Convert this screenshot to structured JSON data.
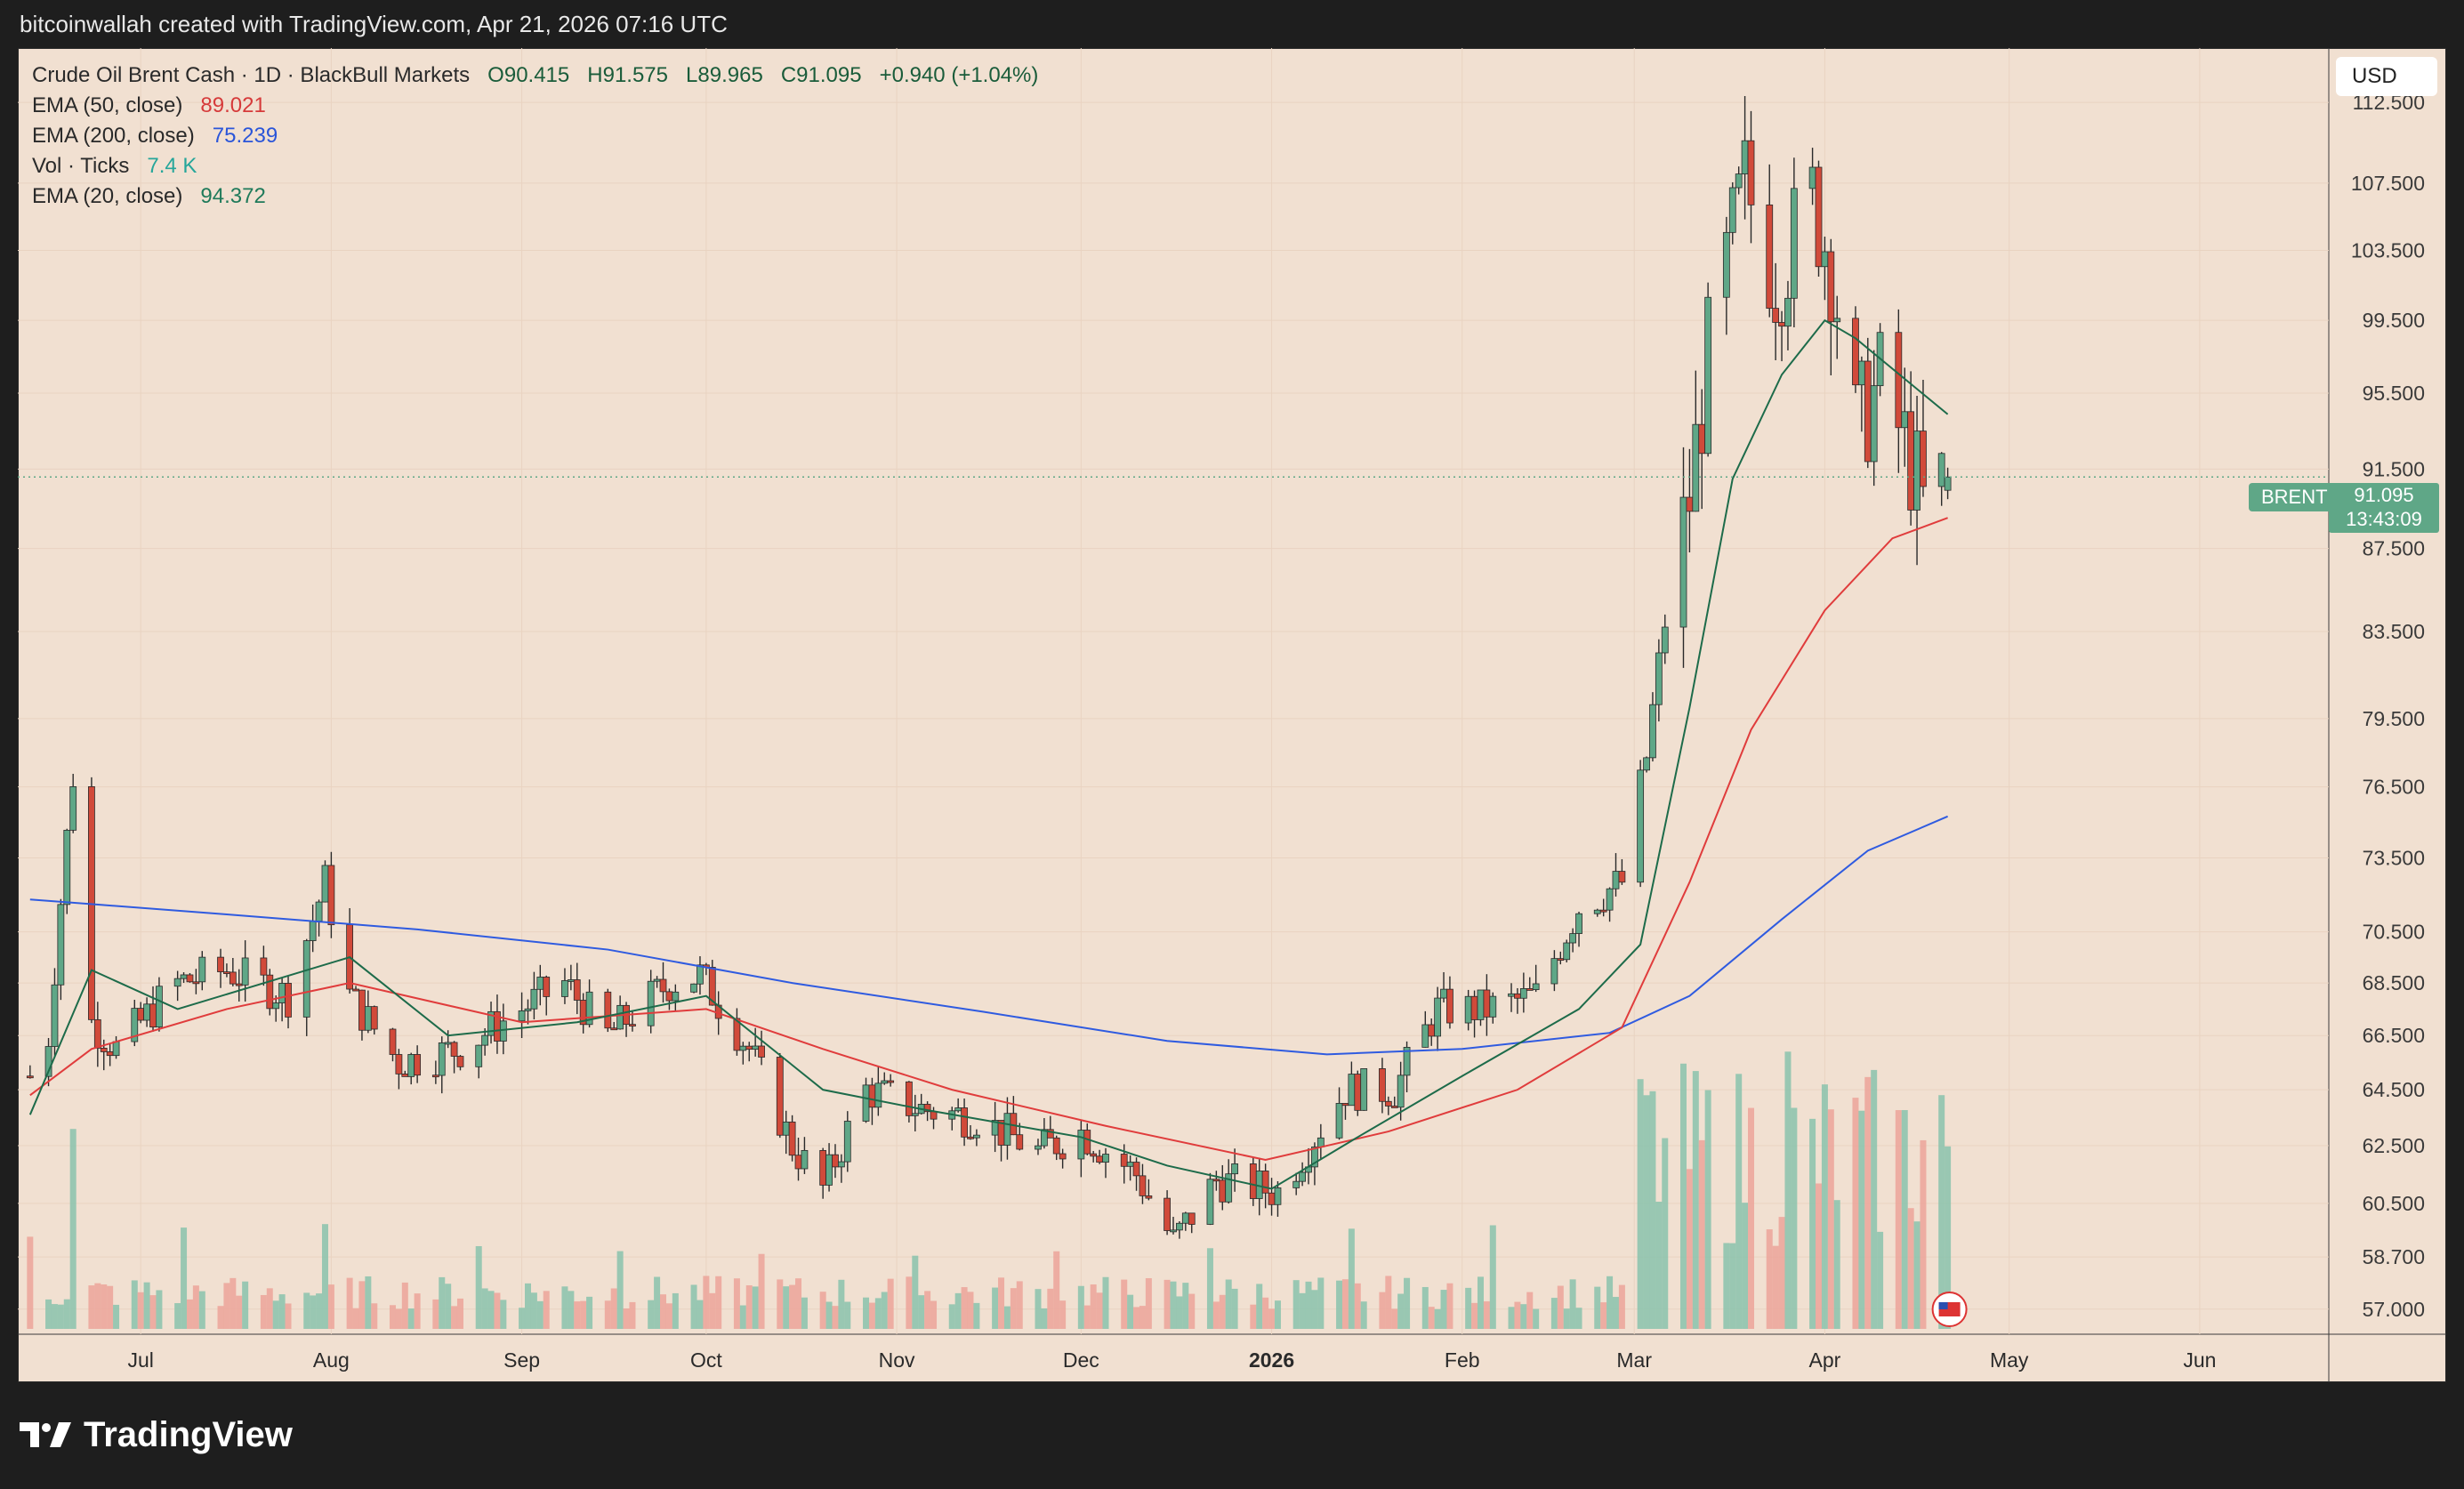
{
  "header": {
    "attribution": "bitcoinwallah created with TradingView.com, Apr 21, 2026 07:16 UTC"
  },
  "legend": {
    "symbol": "Crude Oil Brent Cash · 1D · BlackBull Markets",
    "open": "O90.415",
    "high": "H91.575",
    "low": "L89.965",
    "close": "C91.095",
    "change": "+0.940 (+1.04%)",
    "ema50_label": "EMA (50, close)",
    "ema50_value": "89.021",
    "ema200_label": "EMA (200, close)",
    "ema200_value": "75.239",
    "vol_label": "Vol · Ticks",
    "vol_value": "7.4 K",
    "ema20_label": "EMA (20, close)",
    "ema20_value": "94.372"
  },
  "currency_button": "USD",
  "price_tag": {
    "symbol": "BRENT",
    "price": "91.095",
    "countdown": "13:43:09"
  },
  "footer": {
    "brand": "TradingView"
  },
  "colors": {
    "up": "#5fa787",
    "down": "#d14a3a",
    "ema20": "#1d6b4a",
    "ema50": "#e03c3c",
    "ema200": "#2f5be0",
    "background": "#f1e0d1"
  },
  "chart_data": {
    "type": "candlestick",
    "title": "",
    "y_ticks": [
      "112.500",
      "107.500",
      "103.500",
      "99.500",
      "95.500",
      "91.500",
      "87.500",
      "83.500",
      "79.500",
      "76.500",
      "73.500",
      "70.500",
      "68.500",
      "66.500",
      "64.500",
      "62.500",
      "60.500",
      "58.700",
      "57.000"
    ],
    "x_ticks": [
      "Jul",
      "Aug",
      "Sep",
      "Oct",
      "Nov",
      "Dec",
      "2026",
      "Feb",
      "Mar",
      "Apr",
      "May",
      "Jun"
    ],
    "y_scale": "log",
    "ylim": [
      56.2,
      116.0
    ],
    "period": "1D",
    "last_price": 91.095,
    "price_path": [
      [
        "2025-06-13",
        65.0
      ],
      [
        "2025-06-16",
        66.5
      ],
      [
        "2025-06-20",
        77.0
      ],
      [
        "2025-06-23",
        67.0
      ],
      [
        "2025-06-27",
        66.0
      ],
      [
        "2025-07-07",
        68.5
      ],
      [
        "2025-07-15",
        69.0
      ],
      [
        "2025-07-25",
        68.0
      ],
      [
        "2025-07-31",
        72.5
      ],
      [
        "2025-08-04",
        68.0
      ],
      [
        "2025-08-12",
        65.5
      ],
      [
        "2025-08-22",
        66.0
      ],
      [
        "2025-09-01",
        67.5
      ],
      [
        "2025-09-08",
        68.5
      ],
      [
        "2025-09-15",
        66.5
      ],
      [
        "2025-09-25",
        68.5
      ],
      [
        "2025-09-30",
        68.8
      ],
      [
        "2025-10-08",
        66.0
      ],
      [
        "2025-10-15",
        62.5
      ],
      [
        "2025-10-20",
        61.0
      ],
      [
        "2025-10-27",
        64.5
      ],
      [
        "2025-11-05",
        63.8
      ],
      [
        "2025-11-14",
        63.5
      ],
      [
        "2025-11-24",
        62.3
      ],
      [
        "2025-12-01",
        63.0
      ],
      [
        "2025-12-10",
        61.5
      ],
      [
        "2025-12-16",
        59.2
      ],
      [
        "2025-12-23",
        61.3
      ],
      [
        "2026-01-02",
        60.9
      ],
      [
        "2026-01-07",
        62.5
      ],
      [
        "2026-01-13",
        64.5
      ],
      [
        "2026-01-21",
        64.5
      ],
      [
        "2026-01-28",
        67.5
      ],
      [
        "2026-02-05",
        67.5
      ],
      [
        "2026-02-13",
        68.0
      ],
      [
        "2026-02-20",
        71.5
      ],
      [
        "2026-02-27",
        72.5
      ],
      [
        "2026-03-03",
        77.8
      ],
      [
        "2026-03-06",
        84.0
      ],
      [
        "2026-03-10",
        90.0
      ],
      [
        "2026-03-13",
        97.5
      ],
      [
        "2026-03-19",
        107.5
      ],
      [
        "2026-03-24",
        102.0
      ],
      [
        "2026-03-30",
        106.5
      ],
      [
        "2026-04-02",
        103.0
      ],
      [
        "2026-04-06",
        93.5
      ],
      [
        "2026-04-10",
        96.0
      ],
      [
        "2026-04-15",
        92.0
      ],
      [
        "2026-04-17",
        89.5
      ],
      [
        "2026-04-21",
        91.095
      ]
    ],
    "ema20_path": [
      [
        "2025-06-13",
        63.6
      ],
      [
        "2025-06-23",
        69.0
      ],
      [
        "2025-07-07",
        67.5
      ],
      [
        "2025-08-04",
        69.5
      ],
      [
        "2025-08-20",
        66.5
      ],
      [
        "2025-09-10",
        67.0
      ],
      [
        "2025-10-01",
        68.0
      ],
      [
        "2025-10-20",
        64.5
      ],
      [
        "2025-11-05",
        63.8
      ],
      [
        "2025-12-01",
        62.8
      ],
      [
        "2025-12-15",
        61.8
      ],
      [
        "2026-01-01",
        61.0
      ],
      [
        "2026-01-15",
        62.8
      ],
      [
        "2026-02-01",
        65.0
      ],
      [
        "2026-02-20",
        67.5
      ],
      [
        "2026-03-02",
        70.0
      ],
      [
        "2026-03-10",
        80.0
      ],
      [
        "2026-03-17",
        91.0
      ],
      [
        "2026-03-25",
        96.5
      ],
      [
        "2026-04-01",
        99.5
      ],
      [
        "2026-04-06",
        98.5
      ],
      [
        "2026-04-15",
        96.0
      ],
      [
        "2026-04-21",
        94.372
      ]
    ],
    "ema50_path": [
      [
        "2025-06-13",
        64.3
      ],
      [
        "2025-06-23",
        66.0
      ],
      [
        "2025-07-15",
        67.5
      ],
      [
        "2025-08-04",
        68.5
      ],
      [
        "2025-09-01",
        67.0
      ],
      [
        "2025-10-01",
        67.5
      ],
      [
        "2025-10-20",
        66.0
      ],
      [
        "2025-11-10",
        64.5
      ],
      [
        "2025-12-05",
        63.2
      ],
      [
        "2025-12-31",
        62.0
      ],
      [
        "2026-01-20",
        63.0
      ],
      [
        "2026-02-10",
        64.5
      ],
      [
        "2026-02-27",
        66.8
      ],
      [
        "2026-03-10",
        72.5
      ],
      [
        "2026-03-20",
        79.0
      ],
      [
        "2026-04-01",
        84.5
      ],
      [
        "2026-04-12",
        88.0
      ],
      [
        "2026-04-21",
        89.021
      ]
    ],
    "ema200_path": [
      [
        "2025-06-13",
        71.8
      ],
      [
        "2025-07-15",
        71.2
      ],
      [
        "2025-08-15",
        70.6
      ],
      [
        "2025-09-15",
        69.8
      ],
      [
        "2025-10-15",
        68.5
      ],
      [
        "2025-11-15",
        67.4
      ],
      [
        "2025-12-15",
        66.3
      ],
      [
        "2026-01-10",
        65.8
      ],
      [
        "2026-02-01",
        66.0
      ],
      [
        "2026-02-25",
        66.6
      ],
      [
        "2026-03-10",
        68.0
      ],
      [
        "2026-03-25",
        71.0
      ],
      [
        "2026-04-08",
        73.8
      ],
      [
        "2026-04-21",
        75.239
      ]
    ],
    "volume_note": "Vol · Ticks histogram shown at bottom, latest 7.4 K"
  }
}
